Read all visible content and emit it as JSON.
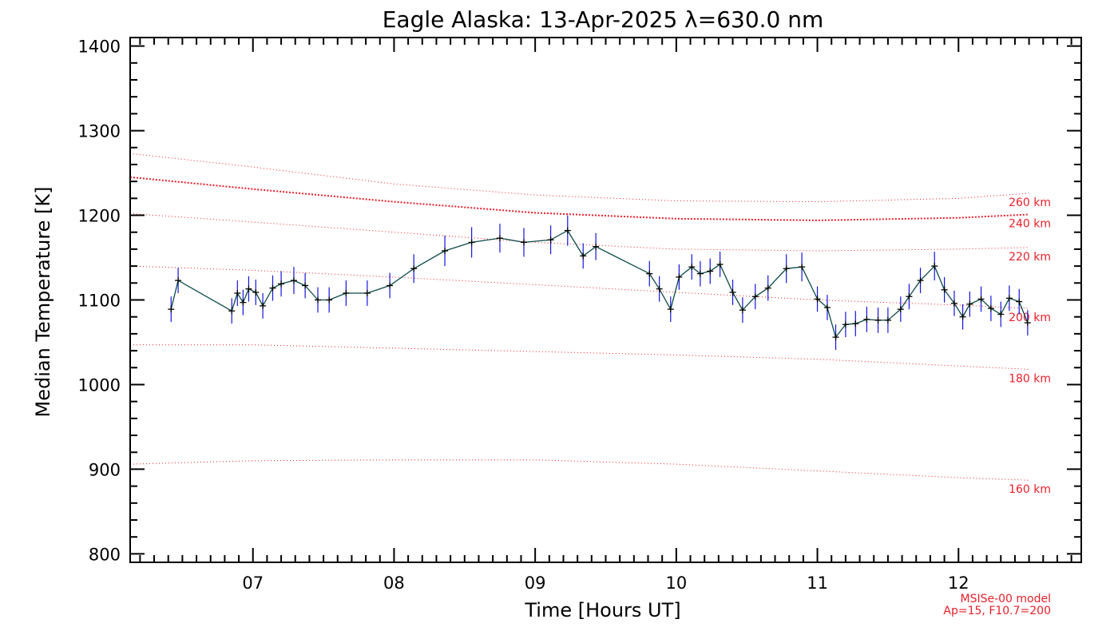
{
  "chart_data": {
    "type": "line",
    "title": "Eagle Alaska: 13-Apr-2025 λ=630.0 nm",
    "xlabel": "Time [Hours UT]",
    "ylabel": "Median Temperature [K]",
    "xlim": [
      6.13,
      12.87
    ],
    "ylim": [
      790,
      1410
    ],
    "x_ticks": [
      7,
      8,
      9,
      10,
      11,
      12
    ],
    "x_tick_labels": [
      "07",
      "08",
      "09",
      "10",
      "11",
      "12"
    ],
    "y_ticks": [
      800,
      900,
      1000,
      1100,
      1200,
      1300,
      1400
    ],
    "y_tick_labels": [
      "800",
      "900",
      "1000",
      "1100",
      "1200",
      "1300",
      "1400"
    ],
    "grid": false,
    "colors": {
      "line": "#0d4a4a",
      "marker": "#000000",
      "errorbar": "#1414e0",
      "model": "#e8202a"
    },
    "series": [
      {
        "x": [
          6.42,
          6.47,
          6.85,
          6.89,
          6.93,
          6.97,
          7.02,
          7.07,
          7.14,
          7.2,
          7.29,
          7.37,
          7.46,
          7.54,
          7.66,
          7.81,
          7.97,
          8.14,
          8.36,
          8.55,
          8.75,
          8.92,
          9.11,
          9.23,
          9.34,
          9.43,
          9.81,
          9.88,
          9.96,
          10.02,
          10.11,
          10.17,
          10.24,
          10.31,
          10.4,
          10.47,
          10.56,
          10.65,
          10.78,
          10.89,
          11.0,
          11.07,
          11.13,
          11.2,
          11.27,
          11.35,
          11.43,
          11.5,
          11.59,
          11.65,
          11.73,
          11.83,
          11.9,
          11.97,
          12.03,
          12.08,
          12.16,
          12.23,
          12.3,
          12.36,
          12.43,
          12.49
        ],
        "y": [
          1089,
          1123,
          1087,
          1108,
          1097,
          1113,
          1109,
          1093,
          1114,
          1119,
          1123,
          1117,
          1100,
          1100,
          1108,
          1108,
          1117,
          1137,
          1158,
          1168,
          1173,
          1168,
          1171,
          1182,
          1152,
          1163,
          1131,
          1113,
          1089,
          1127,
          1139,
          1131,
          1134,
          1142,
          1109,
          1088,
          1104,
          1114,
          1137,
          1139,
          1101,
          1091,
          1056,
          1071,
          1072,
          1077,
          1076,
          1076,
          1089,
          1104,
          1123,
          1140,
          1112,
          1096,
          1080,
          1095,
          1101,
          1090,
          1083,
          1102,
          1098,
          1073
        ],
        "err": [
          15,
          15,
          15,
          15,
          15,
          15,
          15,
          15,
          15,
          15,
          16,
          15,
          15,
          15,
          15,
          15,
          15,
          17,
          18,
          18,
          17,
          17,
          17,
          18,
          15,
          16,
          15,
          15,
          15,
          15,
          15,
          15,
          15,
          15,
          15,
          15,
          15,
          15,
          17,
          17,
          15,
          15,
          15,
          15,
          15,
          15,
          15,
          15,
          15,
          15,
          15,
          17,
          15,
          15,
          15,
          15,
          15,
          15,
          15,
          15,
          15,
          15
        ]
      }
    ],
    "model_curves": [
      {
        "label": "160 km",
        "emphasis": false,
        "x": [
          6.13,
          7.0,
          8.0,
          9.0,
          10.0,
          11.0,
          12.0,
          12.5
        ],
        "y": [
          906,
          910,
          911,
          911,
          906,
          898,
          890,
          887
        ]
      },
      {
        "label": "180 km",
        "emphasis": false,
        "x": [
          6.13,
          7.0,
          8.0,
          9.0,
          10.0,
          11.0,
          12.0,
          12.5
        ],
        "y": [
          1047,
          1047,
          1043,
          1039,
          1035,
          1030,
          1022,
          1018
        ]
      },
      {
        "label": "200 km",
        "emphasis": false,
        "x": [
          6.13,
          7.0,
          8.0,
          9.0,
          10.0,
          11.0,
          12.0,
          12.5
        ],
        "y": [
          1140,
          1135,
          1127,
          1118,
          1109,
          1100,
          1094,
          1090
        ]
      },
      {
        "label": "220 km",
        "emphasis": false,
        "x": [
          6.13,
          7.0,
          8.0,
          9.0,
          10.0,
          11.0,
          12.0,
          12.5
        ],
        "y": [
          1202,
          1192,
          1180,
          1168,
          1160,
          1158,
          1160,
          1162
        ]
      },
      {
        "label": "240 km",
        "emphasis": true,
        "x": [
          6.13,
          7.0,
          8.0,
          9.0,
          10.0,
          11.0,
          12.0,
          12.5
        ],
        "y": [
          1245,
          1231,
          1216,
          1203,
          1196,
          1194,
          1197,
          1201
        ]
      },
      {
        "label": "260 km",
        "emphasis": false,
        "x": [
          6.13,
          7.0,
          8.0,
          9.0,
          10.0,
          11.0,
          12.0,
          12.5
        ],
        "y": [
          1273,
          1257,
          1237,
          1224,
          1217,
          1216,
          1220,
          1226
        ]
      }
    ],
    "annotations": [
      "MSISe-00 model",
      "Ap=15, F10.7=200"
    ]
  }
}
